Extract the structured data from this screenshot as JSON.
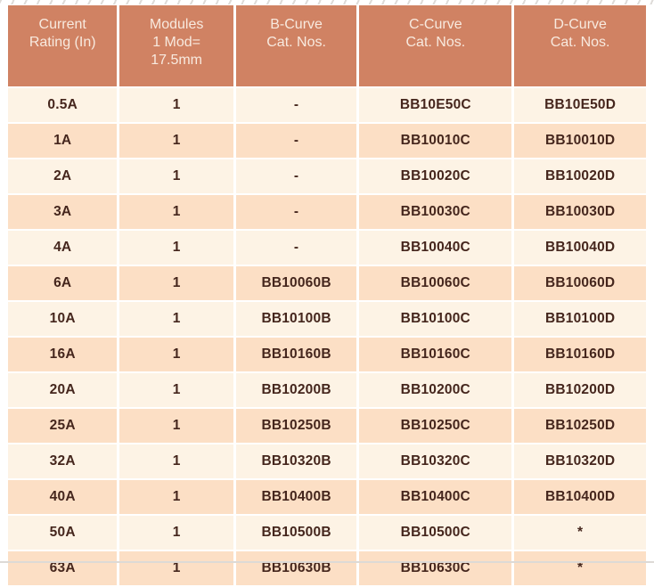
{
  "colors": {
    "header_bg": "#d08263",
    "header_text": "#f8eadf",
    "row_light_bg": "#fdf3e5",
    "row_peach_bg": "#fcdfc5",
    "cell_text": "#45261d"
  },
  "table": {
    "headers": [
      "Current\nRating (In)",
      "Modules\n1 Mod=\n17.5mm",
      "B-Curve\nCat. Nos.",
      "C-Curve\nCat. Nos.",
      "D-Curve\nCat. Nos."
    ],
    "rows": [
      [
        "0.5A",
        "1",
        "-",
        "BB10E50C",
        "BB10E50D"
      ],
      [
        "1A",
        "1",
        "-",
        "BB10010C",
        "BB10010D"
      ],
      [
        "2A",
        "1",
        "-",
        "BB10020C",
        "BB10020D"
      ],
      [
        "3A",
        "1",
        "-",
        "BB10030C",
        "BB10030D"
      ],
      [
        "4A",
        "1",
        "-",
        "BB10040C",
        "BB10040D"
      ],
      [
        "6A",
        "1",
        "BB10060B",
        "BB10060C",
        "BB10060D"
      ],
      [
        "10A",
        "1",
        "BB10100B",
        "BB10100C",
        "BB10100D"
      ],
      [
        "16A",
        "1",
        "BB10160B",
        "BB10160C",
        "BB10160D"
      ],
      [
        "20A",
        "1",
        "BB10200B",
        "BB10200C",
        "BB10200D"
      ],
      [
        "25A",
        "1",
        "BB10250B",
        "BB10250C",
        "BB10250D"
      ],
      [
        "32A",
        "1",
        "BB10320B",
        "BB10320C",
        "BB10320D"
      ],
      [
        "40A",
        "1",
        "BB10400B",
        "BB10400C",
        "BB10400D"
      ],
      [
        "50A",
        "1",
        "BB10500B",
        "BB10500C",
        "*"
      ],
      [
        "63A",
        "1",
        "BB10630B",
        "BB10630C",
        "*"
      ]
    ]
  }
}
